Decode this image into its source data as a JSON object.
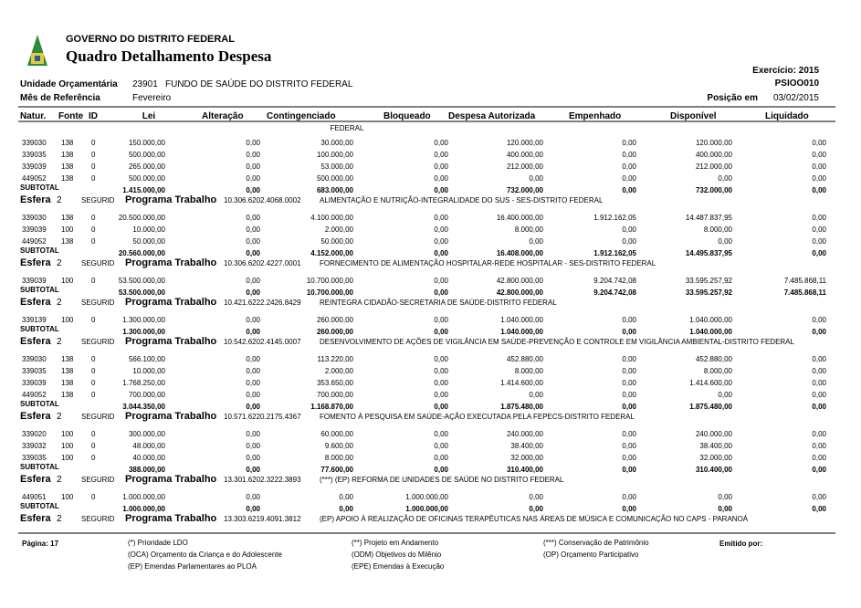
{
  "header": {
    "government": "GOVERNO DO DISTRITO FEDERAL",
    "title": "Quadro Detalhamento Despesa",
    "exercicio": "Exercício: 2015",
    "report_code": "PSIOO010",
    "unidade_label": "Unidade Orçamentária",
    "unidade_code": "23901",
    "unidade_name": "FUNDO DE SAÚDE DO DISTRITO FEDERAL",
    "mes_label": "Mês de Referência",
    "mes_value": "Fevereiro",
    "posicao_label": "Posição em",
    "posicao_value": "03/02/2015"
  },
  "table": {
    "columns": [
      "Natur.",
      "Fonte",
      "ID",
      "Lei",
      "Alteração",
      "Contingenciado",
      "Bloqueado",
      "Despesa Autorizada",
      "Empenhado",
      "Disponível",
      "Liquidado"
    ],
    "continuation": "FEDERAL",
    "subtotal_label": "SUBTOTAL",
    "groups": [
      {
        "rows": [
          [
            "339030",
            "138",
            "0",
            "150.000,00",
            "0,00",
            "30.000,00",
            "0,00",
            "120.000,00",
            "0,00",
            "120.000,00",
            "0,00"
          ],
          [
            "339035",
            "138",
            "0",
            "500.000,00",
            "0,00",
            "100.000,00",
            "0,00",
            "400.000,00",
            "0,00",
            "400.000,00",
            "0,00"
          ],
          [
            "339039",
            "138",
            "0",
            "265.000,00",
            "0,00",
            "53.000,00",
            "0,00",
            "212.000,00",
            "0,00",
            "212.000,00",
            "0,00"
          ],
          [
            "449052",
            "138",
            "0",
            "500.000,00",
            "0,00",
            "500.000,00",
            "0,00",
            "0,00",
            "0,00",
            "0,00",
            "0,00"
          ]
        ],
        "subtotal": [
          "1.415.000,00",
          "0,00",
          "683.000,00",
          "0,00",
          "732.000,00",
          "0,00",
          "732.000,00",
          "0,00"
        ],
        "esfera": {
          "label": "Esfera",
          "number": "2",
          "segurid": "SEGURID",
          "programa": "Programa Trabalho",
          "code": "10.306.6202.4068.0002",
          "description": "ALIMENTAÇÃO E NUTRIÇÃO-INTEGRALIDADE DO SUS - SES-DISTRITO FEDERAL"
        }
      },
      {
        "rows": [
          [
            "339030",
            "138",
            "0",
            "20.500.000,00",
            "0,00",
            "4.100.000,00",
            "0,00",
            "16.400.000,00",
            "1.912.162,05",
            "14.487.837,95",
            "0,00"
          ],
          [
            "339039",
            "100",
            "0",
            "10.000,00",
            "0,00",
            "2.000,00",
            "0,00",
            "8.000,00",
            "0,00",
            "8.000,00",
            "0,00"
          ],
          [
            "449052",
            "138",
            "0",
            "50.000,00",
            "0,00",
            "50.000,00",
            "0,00",
            "0,00",
            "0,00",
            "0,00",
            "0,00"
          ]
        ],
        "subtotal": [
          "20.560.000,00",
          "0,00",
          "4.152.000,00",
          "0,00",
          "16.408.000,00",
          "1.912.162,05",
          "14.495.837,95",
          "0,00"
        ],
        "esfera": {
          "label": "Esfera",
          "number": "2",
          "segurid": "SEGURID",
          "programa": "Programa Trabalho",
          "code": "10.306.6202.4227.0001",
          "description": "FORNECIMENTO DE ALIMENTAÇÃO HOSPITALAR-REDE HOSPITALAR - SES-DISTRITO FEDERAL"
        }
      },
      {
        "rows": [
          [
            "339039",
            "100",
            "0",
            "53.500.000,00",
            "0,00",
            "10.700.000,00",
            "0,00",
            "42.800.000,00",
            "9.204.742,08",
            "33.595.257,92",
            "7.485.868,11"
          ]
        ],
        "subtotal": [
          "53.500.000,00",
          "0,00",
          "10.700.000,00",
          "0,00",
          "42.800.000,00",
          "9.204.742,08",
          "33.595.257,92",
          "7.485.868,11"
        ],
        "esfera": {
          "label": "Esfera",
          "number": "2",
          "segurid": "SEGURID",
          "programa": "Programa Trabalho",
          "code": "10.421.6222.2426.8429",
          "description": "REINTEGRA CIDADÃO-SECRETARIA DE SAÚDE-DISTRITO FEDERAL"
        }
      },
      {
        "rows": [
          [
            "339139",
            "100",
            "0",
            "1.300.000,00",
            "0,00",
            "260.000,00",
            "0,00",
            "1.040.000,00",
            "0,00",
            "1.040.000,00",
            "0,00"
          ]
        ],
        "subtotal": [
          "1.300.000,00",
          "0,00",
          "260.000,00",
          "0,00",
          "1.040.000,00",
          "0,00",
          "1.040.000,00",
          "0,00"
        ],
        "esfera": {
          "label": "Esfera",
          "number": "2",
          "segurid": "SEGURID",
          "programa": "Programa Trabalho",
          "code": "10.542.6202.4145.0007",
          "description": "DESENVOLVIMENTO DE AÇÕES DE VIGILÂNCIA EM SAÚDE-PREVENÇÃO E CONTROLE EM VIGILÂNCIA AMBIENTAL-DISTRITO FEDERAL"
        }
      },
      {
        "rows": [
          [
            "339030",
            "138",
            "0",
            "566.100,00",
            "0,00",
            "113.220,00",
            "0,00",
            "452.880,00",
            "0,00",
            "452.880,00",
            "0,00"
          ],
          [
            "339035",
            "138",
            "0",
            "10.000,00",
            "0,00",
            "2.000,00",
            "0,00",
            "8.000,00",
            "0,00",
            "8.000,00",
            "0,00"
          ],
          [
            "339039",
            "138",
            "0",
            "1.768.250,00",
            "0,00",
            "353.650,00",
            "0,00",
            "1.414.600,00",
            "0,00",
            "1.414.600,00",
            "0,00"
          ],
          [
            "449052",
            "138",
            "0",
            "700.000,00",
            "0,00",
            "700.000,00",
            "0,00",
            "0,00",
            "0,00",
            "0,00",
            "0,00"
          ]
        ],
        "subtotal": [
          "3.044.350,00",
          "0,00",
          "1.168.870,00",
          "0,00",
          "1.875.480,00",
          "0,00",
          "1.875.480,00",
          "0,00"
        ],
        "esfera": {
          "label": "Esfera",
          "number": "2",
          "segurid": "SEGURID",
          "programa": "Programa Trabalho",
          "code": "10.571.6220.2175.4367",
          "description": "FOMENTO À PESQUISA EM SAÚDE-AÇÃO EXECUTADA PELA FEPECS-DISTRITO FEDERAL"
        }
      },
      {
        "rows": [
          [
            "339020",
            "100",
            "0",
            "300.000,00",
            "0,00",
            "60.000,00",
            "0,00",
            "240.000,00",
            "0,00",
            "240.000,00",
            "0,00"
          ],
          [
            "339032",
            "100",
            "0",
            "48.000,00",
            "0,00",
            "9.600,00",
            "0,00",
            "38.400,00",
            "0,00",
            "38.400,00",
            "0,00"
          ],
          [
            "339035",
            "100",
            "0",
            "40.000,00",
            "0,00",
            "8.000,00",
            "0,00",
            "32.000,00",
            "0,00",
            "32.000,00",
            "0,00"
          ]
        ],
        "subtotal": [
          "388.000,00",
          "0,00",
          "77.600,00",
          "0,00",
          "310.400,00",
          "0,00",
          "310.400,00",
          "0,00"
        ],
        "esfera": {
          "label": "Esfera",
          "number": "2",
          "segurid": "SEGURID",
          "programa": "Programa Trabalho",
          "code": "13.301.6202.3222.3893",
          "description": "(***) (EP) REFORMA DE UNIDADES DE SAÚDE NO DISTRITO FEDERAL"
        }
      },
      {
        "rows": [
          [
            "449051",
            "100",
            "0",
            "1.000.000,00",
            "0,00",
            "0,00",
            "1.000.000,00",
            "0,00",
            "0,00",
            "0,00",
            "0,00"
          ]
        ],
        "subtotal": [
          "1.000.000,00",
          "0,00",
          "0,00",
          "1.000.000,00",
          "0,00",
          "0,00",
          "0,00",
          "0,00"
        ],
        "esfera": {
          "label": "Esfera",
          "number": "2",
          "segurid": "SEGURID",
          "programa": "Programa Trabalho",
          "code": "13.303.6219.4091.3812",
          "description": "(EP) APOIO À REALIZAÇÃO DE OFICINAS TERAPÊUTICAS NAS ÁREAS DE MÚSICA E COMUNICAÇÃO NO CAPS - PARANOÁ"
        }
      }
    ]
  },
  "footer": {
    "page": "Página: 17",
    "legend": [
      [
        "(*) Prioridade LDO",
        "(OCA) Orçamento da Criança e do Adolescente",
        "(EP) Emendas Parlamentares ao PLOA"
      ],
      [
        "(**) Projeto em Andamento",
        "(ODM) Objetivos do Milênio",
        "(EPE) Emendas à Execução"
      ],
      [
        "(***) Conservação de Patrimônio",
        "(OP) Orçamento Participativo"
      ]
    ],
    "emitido": "Emitido por:"
  }
}
